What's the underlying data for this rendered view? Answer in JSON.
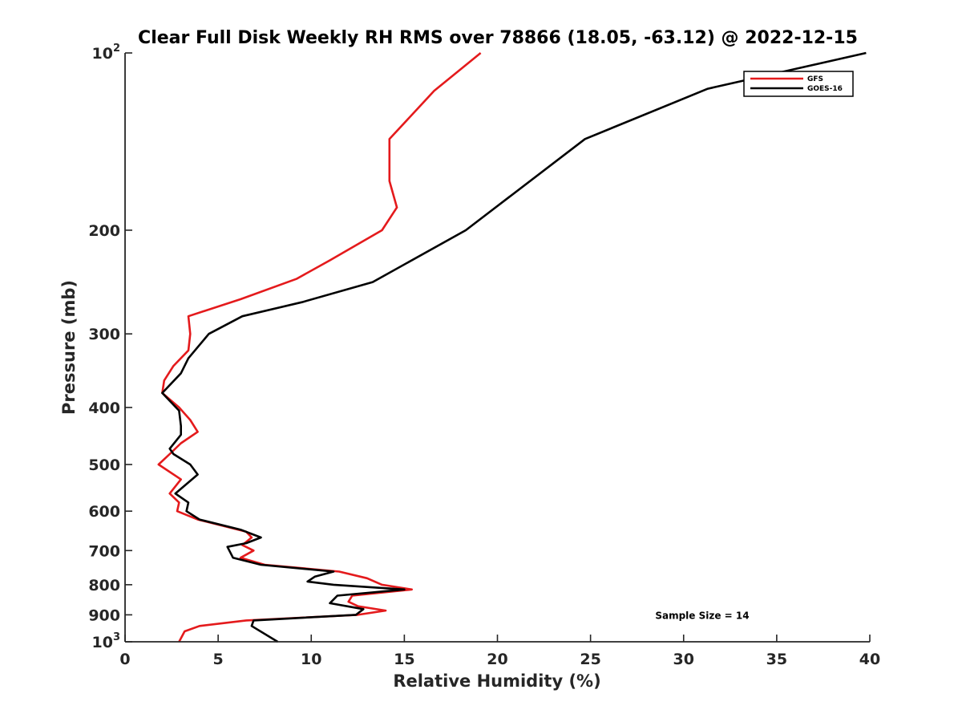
{
  "chart_data": {
    "type": "line",
    "title": "Clear Full Disk Weekly RH RMS over 78866 (18.05, -63.12) @ 2022-12-15",
    "xlabel": "Relative Humidity (%)",
    "ylabel": "Pressure (mb)",
    "xlim": [
      0,
      40
    ],
    "ylim": [
      100,
      1000
    ],
    "yscale": "log",
    "y_reversed": true,
    "grid": false,
    "legend_position": "top-right",
    "x_ticks": [
      {
        "value": 0,
        "label": "0"
      },
      {
        "value": 5,
        "label": "5"
      },
      {
        "value": 10,
        "label": "10"
      },
      {
        "value": 15,
        "label": "15"
      },
      {
        "value": 20,
        "label": "20"
      },
      {
        "value": 25,
        "label": "25"
      },
      {
        "value": 30,
        "label": "30"
      },
      {
        "value": 35,
        "label": "35"
      },
      {
        "value": 40,
        "label": "40"
      }
    ],
    "y_ticks": [
      {
        "value": 100,
        "base": "10",
        "exp": "2"
      },
      {
        "value": 200,
        "label": "200"
      },
      {
        "value": 300,
        "label": "300"
      },
      {
        "value": 400,
        "label": "400"
      },
      {
        "value": 500,
        "label": "500"
      },
      {
        "value": 600,
        "label": "600"
      },
      {
        "value": 700,
        "label": "700"
      },
      {
        "value": 800,
        "label": "800"
      },
      {
        "value": 900,
        "label": "900"
      },
      {
        "value": 1000,
        "base": "10",
        "exp": "3"
      }
    ],
    "series": [
      {
        "name": "GFS",
        "color": "#e41a1c",
        "points": [
          [
            19.1,
            100
          ],
          [
            16.6,
            116
          ],
          [
            14.2,
            140
          ],
          [
            14.2,
            165
          ],
          [
            14.6,
            183
          ],
          [
            13.8,
            200
          ],
          [
            11.0,
            225
          ],
          [
            9.2,
            242
          ],
          [
            6.2,
            262
          ],
          [
            3.4,
            280
          ],
          [
            3.5,
            300
          ],
          [
            3.4,
            320
          ],
          [
            2.6,
            340
          ],
          [
            2.1,
            360
          ],
          [
            2.0,
            378
          ],
          [
            2.9,
            400
          ],
          [
            3.5,
            420
          ],
          [
            3.9,
            440
          ],
          [
            3.0,
            460
          ],
          [
            2.4,
            480
          ],
          [
            1.8,
            500
          ],
          [
            3.0,
            530
          ],
          [
            2.4,
            560
          ],
          [
            2.9,
            580
          ],
          [
            2.8,
            600
          ],
          [
            3.9,
            620
          ],
          [
            6.5,
            650
          ],
          [
            6.8,
            665
          ],
          [
            6.3,
            685
          ],
          [
            6.9,
            700
          ],
          [
            6.2,
            720
          ],
          [
            7.5,
            740
          ],
          [
            11.5,
            760
          ],
          [
            13.0,
            780
          ],
          [
            13.8,
            800
          ],
          [
            15.4,
            815
          ],
          [
            12.2,
            835
          ],
          [
            12.0,
            855
          ],
          [
            12.5,
            870
          ],
          [
            14.0,
            885
          ],
          [
            12.5,
            900
          ],
          [
            6.5,
            920
          ],
          [
            4.0,
            940
          ],
          [
            3.2,
            960
          ],
          [
            2.9,
            1000
          ]
        ]
      },
      {
        "name": "GOES-16",
        "color": "#000000",
        "points": [
          [
            39.8,
            100
          ],
          [
            31.3,
            115
          ],
          [
            24.7,
            140
          ],
          [
            18.3,
            200
          ],
          [
            13.3,
            245
          ],
          [
            9.5,
            265
          ],
          [
            6.3,
            280
          ],
          [
            4.5,
            300
          ],
          [
            3.4,
            330
          ],
          [
            3.0,
            350
          ],
          [
            2.0,
            378
          ],
          [
            2.9,
            405
          ],
          [
            3.0,
            430
          ],
          [
            3.0,
            445
          ],
          [
            2.4,
            470
          ],
          [
            2.6,
            480
          ],
          [
            3.5,
            500
          ],
          [
            3.9,
            520
          ],
          [
            2.7,
            560
          ],
          [
            3.4,
            580
          ],
          [
            3.3,
            600
          ],
          [
            4.0,
            620
          ],
          [
            6.2,
            645
          ],
          [
            7.3,
            665
          ],
          [
            6.5,
            680
          ],
          [
            5.5,
            690
          ],
          [
            5.8,
            720
          ],
          [
            7.3,
            740
          ],
          [
            11.2,
            760
          ],
          [
            10.2,
            775
          ],
          [
            9.8,
            790
          ],
          [
            11.2,
            800
          ],
          [
            15.0,
            815
          ],
          [
            11.4,
            835
          ],
          [
            11.0,
            860
          ],
          [
            12.8,
            880
          ],
          [
            12.4,
            900
          ],
          [
            6.9,
            920
          ],
          [
            6.8,
            940
          ],
          [
            8.2,
            1000
          ]
        ]
      }
    ],
    "annotations": [
      {
        "text": "Sample Size = 14",
        "x": 31.0,
        "y": 900
      }
    ]
  }
}
